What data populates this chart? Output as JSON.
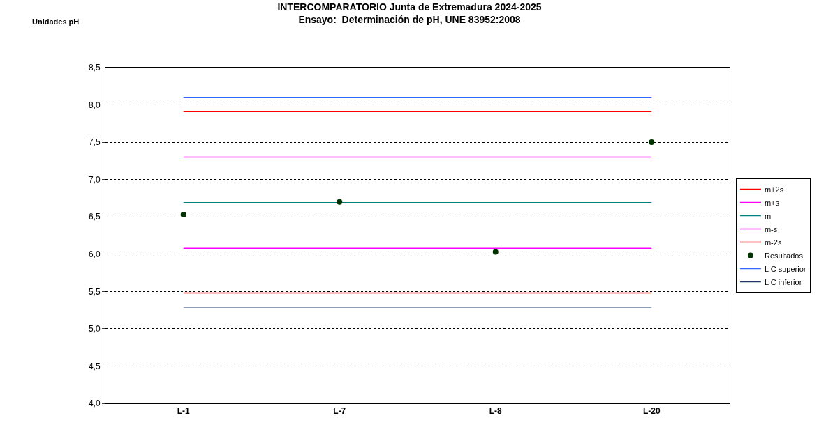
{
  "chart_data": {
    "type": "line",
    "title": "INTERCOMPARATORIO Junta de Extremadura 2024-2025",
    "subtitle": "Ensayo:  Determinación de pH, UNE 83952:2008",
    "ylabel": "Unidades pH",
    "categories": [
      "L-1",
      "L-7",
      "L-8",
      "L-20"
    ],
    "series": [
      {
        "name": "m+2s",
        "color": "#ff0000",
        "values": [
          7.91,
          7.91,
          7.91,
          7.91
        ]
      },
      {
        "name": "m+s",
        "color": "#ff00ff",
        "values": [
          7.3,
          7.3,
          7.3,
          7.3
        ]
      },
      {
        "name": "m",
        "color": "#008080",
        "values": [
          6.69,
          6.69,
          6.69,
          6.69
        ]
      },
      {
        "name": "m-s",
        "color": "#ff00ff",
        "values": [
          6.08,
          6.08,
          6.08,
          6.08
        ]
      },
      {
        "name": "m-2s",
        "color": "#e00000",
        "values": [
          5.48,
          5.48,
          5.48,
          5.48
        ]
      },
      {
        "name": "Resultados",
        "type": "scatter",
        "marker": "circle",
        "color": "#003300",
        "values": [
          6.53,
          6.7,
          6.03,
          7.5
        ]
      },
      {
        "name": "L C superior",
        "color": "#3366ff",
        "values": [
          8.1,
          8.1,
          8.1,
          8.1
        ]
      },
      {
        "name": "L C inferior",
        "color": "#1f3864",
        "values": [
          5.29,
          5.29,
          5.29,
          5.29
        ]
      }
    ],
    "ylim": [
      4.0,
      8.5
    ],
    "yticks": [
      {
        "value": 4.0,
        "label": "4,0"
      },
      {
        "value": 4.5,
        "label": "4,5"
      },
      {
        "value": 5.0,
        "label": "5,0"
      },
      {
        "value": 5.5,
        "label": "5,5"
      },
      {
        "value": 6.0,
        "label": "6,0"
      },
      {
        "value": 6.5,
        "label": "6,5"
      },
      {
        "value": 7.0,
        "label": "7,0"
      },
      {
        "value": 7.5,
        "label": "7,5"
      },
      {
        "value": 8.0,
        "label": "8,0"
      },
      {
        "value": 8.5,
        "label": "8,5"
      }
    ],
    "grid": "y",
    "legend": "right",
    "marker": "none",
    "line_style": "solid"
  }
}
